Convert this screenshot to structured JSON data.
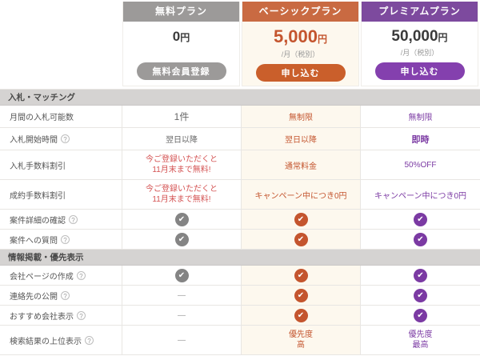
{
  "icons": {
    "check": "✔",
    "question": "?",
    "dash": "—"
  },
  "colors": {
    "free_header": "#9c9a99",
    "free_accent": "#848484",
    "basic_header": "#c96a42",
    "basic_accent": "#c4552e",
    "basic_button": "#ca5f2b",
    "basic_bg": "#fdf8ee",
    "premium_header": "#7d4a9e",
    "premium_accent": "#7b3aa3",
    "premium_button": "#8440ae",
    "campaign_red": "#d45252",
    "section_bg": "#d5d3d2"
  },
  "plans": [
    {
      "name": "無料プラン",
      "price": "0",
      "unit": "円",
      "period": "",
      "button": "無料会員登録"
    },
    {
      "name": "ベーシックプラン",
      "price": "5,000",
      "unit": "円",
      "period": "/月（税別）",
      "button": "申し込む"
    },
    {
      "name": "プレミアムプラン",
      "price": "50,000",
      "unit": "円",
      "period": "/月（税別）",
      "button": "申し込む"
    }
  ],
  "sections": [
    {
      "title": "入札・マッチング"
    },
    {
      "title": "情報掲載・優先表示"
    }
  ],
  "rows": [
    {
      "label": "月間の入札可能数",
      "free": {
        "text": "1件"
      },
      "basic": {
        "text": "無制限"
      },
      "premium": {
        "text": "無制限"
      }
    },
    {
      "label": "入札開始時間",
      "free": {
        "text": "翌日以降"
      },
      "basic": {
        "text": "翌日以降"
      },
      "premium": {
        "text": "即時"
      }
    },
    {
      "label": "入札手数料割引",
      "free": {
        "line1": "今ご登録いただくと",
        "line2": "11月末まで無料!"
      },
      "basic": {
        "text": "通常料金"
      },
      "premium": {
        "text": "50%OFF"
      }
    },
    {
      "label": "成約手数料割引",
      "free": {
        "line1": "今ご登録いただくと",
        "line2": "11月末まで無料!"
      },
      "basic": {
        "text": "キャンペーン中につき0円"
      },
      "premium": {
        "text": "キャンペーン中につき0円"
      }
    },
    {
      "label": "案件詳細の確認"
    },
    {
      "label": "案件への質問"
    },
    {
      "label": "会社ページの作成"
    },
    {
      "label": "連絡先の公開"
    },
    {
      "label": "おすすめ会社表示"
    },
    {
      "label": "検索結果の上位表示",
      "basic": {
        "line1": "優先度",
        "line2": "高"
      },
      "premium": {
        "line1": "優先度",
        "line2": "最高"
      }
    }
  ]
}
